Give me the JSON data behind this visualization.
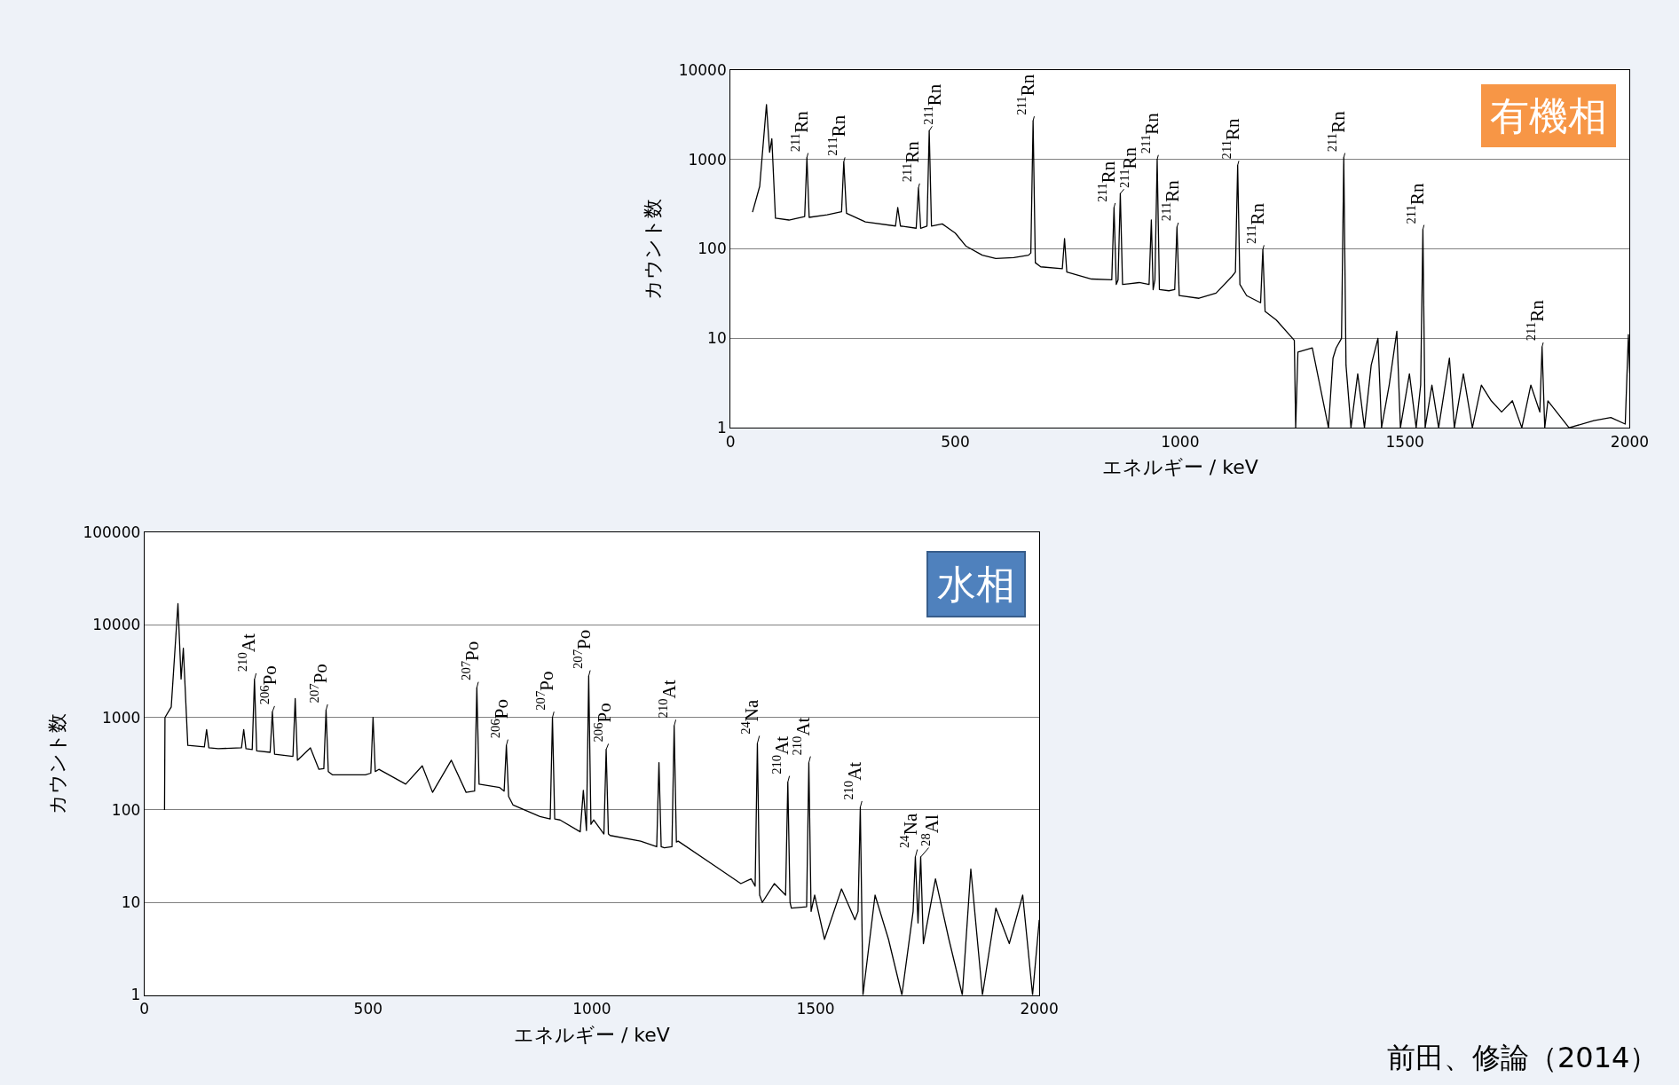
{
  "chart_data": [
    {
      "type": "line",
      "xlabel": "エネルギー / keV",
      "ylabel": "カウント数",
      "log": true,
      "grid": "y",
      "marker": "none",
      "line_style": "solid",
      "xlim": [
        0,
        2000
      ],
      "xticks": [
        0,
        500,
        1000,
        1500,
        2000
      ],
      "ylim": [
        1,
        10000
      ],
      "yticks": [
        1,
        10,
        100,
        1000,
        10000
      ],
      "x": [
        49,
        65,
        80,
        87,
        92,
        100,
        130,
        165,
        170,
        175,
        215,
        247,
        252,
        258,
        300,
        367,
        372,
        378,
        413,
        418,
        423,
        437,
        442,
        447,
        471,
        500,
        524,
        560,
        590,
        630,
        663,
        668,
        673,
        678,
        690,
        738,
        743,
        748,
        803,
        848,
        853,
        858,
        862,
        867,
        872,
        909,
        931,
        936,
        940,
        944,
        949,
        954,
        975,
        988,
        993,
        998,
        1042,
        1080,
        1115,
        1123,
        1128,
        1133,
        1148,
        1179,
        1184,
        1189,
        1214,
        1254,
        1257,
        1262,
        1294,
        1330,
        1340,
        1347,
        1359,
        1364,
        1369,
        1380,
        1395,
        1410,
        1425,
        1440,
        1448,
        1465,
        1482,
        1490,
        1510,
        1525,
        1535,
        1540,
        1545,
        1560,
        1575,
        1599,
        1610,
        1630,
        1650,
        1670,
        1692,
        1715,
        1739,
        1760,
        1780,
        1800,
        1805,
        1811,
        1818,
        1865,
        1920,
        1958,
        1990,
        1997,
        2000
      ],
      "series": [
        {
          "color": "#000000",
          "values": [
            257,
            500,
            4100,
            1200,
            1700,
            220,
            210,
            230,
            1050,
            225,
            240,
            260,
            940,
            250,
            200,
            180,
            290,
            180,
            170,
            480,
            170,
            180,
            2090,
            180,
            190,
            150,
            107,
            85,
            78,
            80,
            85,
            90,
            2700,
            70,
            63,
            60,
            130,
            55,
            46,
            45,
            290,
            40,
            45,
            415,
            40,
            42,
            40,
            210,
            35,
            45,
            1000,
            35,
            34,
            35,
            175,
            30,
            28,
            32,
            49,
            55,
            860,
            40,
            30,
            25,
            98,
            20,
            16,
            9.5,
            1,
            7,
            7.8,
            1,
            6,
            7.8,
            10,
            1050,
            5,
            1,
            4,
            1,
            5,
            10,
            1,
            3,
            12,
            1,
            4,
            1,
            3,
            165,
            1,
            3,
            1,
            6,
            1,
            4,
            1,
            3,
            2,
            1.5,
            2,
            1,
            3,
            1.5,
            8,
            1,
            2,
            1,
            1.2,
            1.3,
            1.1,
            11,
            4
          ]
        }
      ],
      "annotations": [
        "有機相",
        {
          "text": "$^{211}$Rn",
          "x": 170,
          "y": 1050
        },
        {
          "text": "$^{211}$Rn",
          "x": 252,
          "y": 940
        },
        {
          "text": "$^{211}$Rn",
          "x": 418,
          "y": 480
        },
        {
          "text": "$^{211}$Rn",
          "x": 442,
          "y": 2090
        },
        {
          "text": "$^{211}$Rn",
          "x": 673,
          "y": 2700
        },
        {
          "text": "$^{211}$Rn",
          "x": 853,
          "y": 290
        },
        {
          "text": "$^{211}$Rn",
          "x": 867,
          "y": 415
        },
        {
          "text": "$^{211}$Rn",
          "x": 949,
          "y": 1000
        },
        {
          "text": "$^{211}$Rn",
          "x": 993,
          "y": 175
        },
        {
          "text": "$^{211}$Rn",
          "x": 1128,
          "y": 860
        },
        {
          "text": "$^{211}$Rn",
          "x": 1184,
          "y": 98
        },
        {
          "text": "$^{211}$Rn",
          "x": 1364,
          "y": 1050
        },
        {
          "text": "$^{211}$Rn",
          "x": 1540,
          "y": 165
        },
        {
          "text": "$^{211}$Rn",
          "x": 1805,
          "y": 8
        }
      ]
    },
    {
      "type": "line",
      "xlabel": "エネルギー / keV",
      "ylabel": "カウント数",
      "log": true,
      "grid": "y",
      "marker": "none",
      "line_style": "solid",
      "xlim": [
        0,
        2000
      ],
      "xticks": [
        0,
        500,
        1000,
        1500,
        2000
      ],
      "ylim": [
        1,
        100000
      ],
      "yticks": [
        1,
        10,
        100,
        1000,
        10000,
        100000
      ],
      "x": [
        45,
        46,
        60,
        75,
        82,
        87,
        97,
        134,
        139,
        144,
        165,
        217,
        222,
        227,
        241,
        246,
        251,
        281,
        286,
        291,
        332,
        337,
        342,
        371,
        390,
        401,
        406,
        411,
        420,
        494,
        506,
        511,
        516,
        524,
        584,
        621,
        644,
        686,
        719,
        738,
        743,
        748,
        794,
        804,
        809,
        814,
        824,
        884,
        907,
        912,
        917,
        929,
        974,
        981,
        988,
        993,
        998,
        1004,
        1027,
        1032,
        1037,
        1041,
        1109,
        1145,
        1150,
        1155,
        1162,
        1179,
        1184,
        1189,
        1193,
        1274,
        1333,
        1356,
        1365,
        1370,
        1375,
        1381,
        1408,
        1433,
        1438,
        1443,
        1446,
        1480,
        1485,
        1490,
        1498,
        1520,
        1558,
        1588,
        1595,
        1600,
        1606,
        1633,
        1663,
        1693,
        1718,
        1723,
        1729,
        1735,
        1741,
        1768,
        1798,
        1828,
        1847,
        1873,
        1903,
        1933,
        1963,
        1985,
        2000
      ],
      "series": [
        {
          "color": "#000000",
          "values": [
            100,
            1000,
            1300,
            17000,
            2600,
            5600,
            500,
            480,
            740,
            470,
            460,
            470,
            740,
            460,
            450,
            2570,
            435,
            420,
            1150,
            400,
            380,
            1600,
            345,
            470,
            275,
            280,
            1200,
            260,
            240,
            240,
            250,
            1000,
            260,
            275,
            190,
            300,
            155,
            345,
            155,
            160,
            2100,
            190,
            175,
            160,
            500,
            140,
            113,
            85,
            80,
            1000,
            80,
            78,
            58,
            163,
            60,
            2800,
            70,
            78,
            55,
            450,
            55,
            53,
            46,
            40,
            325,
            40,
            39,
            40,
            810,
            45,
            46,
            25,
            16,
            18,
            15,
            525,
            12,
            10,
            16,
            12,
            200,
            10,
            8.7,
            9,
            325,
            8,
            12,
            4,
            14,
            6.5,
            8,
            107,
            1,
            12,
            4,
            1,
            8,
            31,
            6,
            31,
            3.6,
            18,
            4,
            1,
            23,
            1,
            8.7,
            3.6,
            12,
            1,
            6.5
          ]
        }
      ],
      "annotations": [
        "水相",
        "前田、修論（2014）",
        {
          "text": "$^{210}$At",
          "x": 246,
          "y": 2570
        },
        {
          "text": "$^{206}$Po",
          "x": 286,
          "y": 1150
        },
        {
          "text": "$^{207}$Po",
          "x": 406,
          "y": 1200
        },
        {
          "text": "$^{207}$Po",
          "x": 743,
          "y": 2100
        },
        {
          "text": "$^{206}$Po",
          "x": 809,
          "y": 500
        },
        {
          "text": "$^{207}$Po",
          "x": 912,
          "y": 1000
        },
        {
          "text": "$^{207}$Po",
          "x": 993,
          "y": 2800
        },
        {
          "text": "$^{206}$Po",
          "x": 1032,
          "y": 450
        },
        {
          "text": "$^{210}$At",
          "x": 1184,
          "y": 810
        },
        {
          "text": "$^{24}$Na",
          "x": 1370,
          "y": 525
        },
        {
          "text": "$^{210}$At",
          "x": 1438,
          "y": 200
        },
        {
          "text": "$^{210}$At",
          "x": 1485,
          "y": 325
        },
        {
          "text": "$^{210}$At",
          "x": 1600,
          "y": 107
        },
        {
          "text": "$^{24}$Na",
          "x": 1723,
          "y": 31
        },
        {
          "text": "$^{28}$Al",
          "x": 1735,
          "y": 31
        }
      ]
    }
  ]
}
